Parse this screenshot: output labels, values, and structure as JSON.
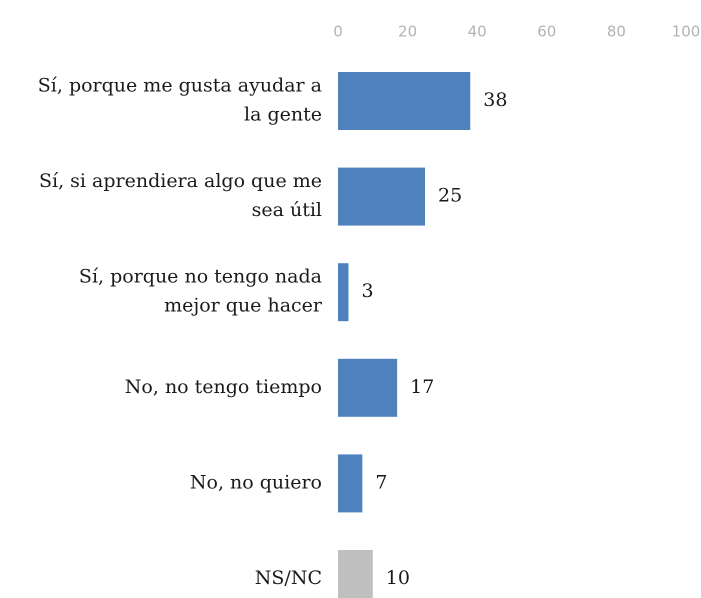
{
  "chart_data": {
    "type": "bar",
    "orientation": "horizontal",
    "categories": [
      [
        "Sí, porque me gusta ayudar a",
        "la gente"
      ],
      [
        "Sí, si aprendiera algo que me",
        "sea útil"
      ],
      [
        "Sí, porque no tengo nada",
        "mejor que hacer"
      ],
      [
        "No, no tengo tiempo"
      ],
      [
        "No, no quiero"
      ],
      [
        "NS/NC"
      ]
    ],
    "values": [
      38,
      25,
      3,
      17,
      7,
      10
    ],
    "bar_colors": [
      "#4f81bd",
      "#4f81bd",
      "#4f81bd",
      "#4f81bd",
      "#4f81bd",
      "#bfbfbf"
    ],
    "xlim": [
      0,
      100
    ],
    "ticks": [
      0,
      20,
      40,
      60,
      80,
      100
    ],
    "title": "",
    "xlabel": "",
    "ylabel": "",
    "grid": false,
    "legend": "none"
  }
}
